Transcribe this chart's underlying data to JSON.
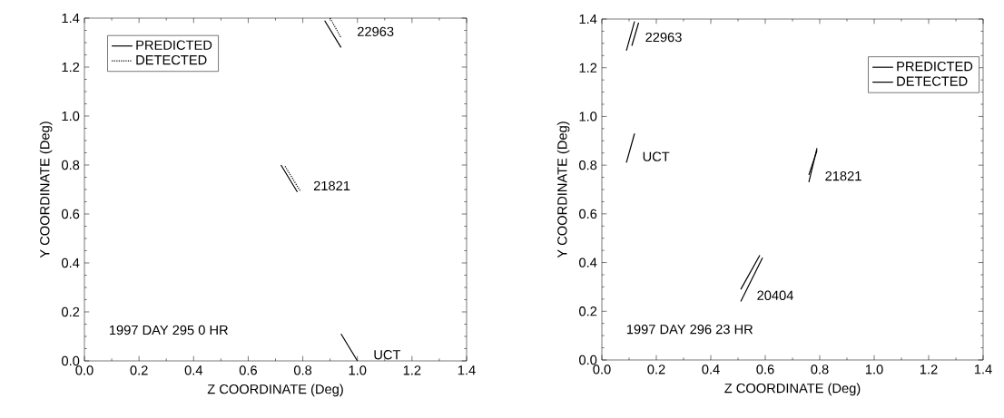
{
  "chart_data": [
    {
      "type": "line",
      "xlabel": "Z COORDINATE (Deg)",
      "ylabel": "Y COORDINATE (Deg)",
      "xlim": [
        0,
        1.4
      ],
      "ylim": [
        0,
        1.4
      ],
      "xticks": [
        {
          "value": 0,
          "label": "0.0"
        },
        {
          "value": 0.2,
          "label": "0.2"
        },
        {
          "value": 0.4,
          "label": "0.4"
        },
        {
          "value": 0.6,
          "label": "0.6"
        },
        {
          "value": 0.8,
          "label": "0.8"
        },
        {
          "value": 1,
          "label": "1.0"
        },
        {
          "value": 1.2,
          "label": "1.2"
        },
        {
          "value": 1.4,
          "label": "1.4"
        }
      ],
      "yticks": [
        {
          "value": 0,
          "label": "0.0"
        },
        {
          "value": 0.2,
          "label": "0.2"
        },
        {
          "value": 0.4,
          "label": "0.4"
        },
        {
          "value": 0.6,
          "label": "0.6"
        },
        {
          "value": 0.8,
          "label": "0.8"
        },
        {
          "value": 1,
          "label": "1.0"
        },
        {
          "value": 1.2,
          "label": "1.2"
        },
        {
          "value": 1.4,
          "label": "1.4"
        }
      ],
      "legend": "top left",
      "series": [
        {
          "name": "PREDICTED",
          "color": "#000000",
          "line_style": "solid",
          "x": [
            0.88,
            0.94,
            null,
            0.72,
            0.78
          ],
          "values": [
            1.39,
            1.28,
            null,
            0.8,
            0.69
          ]
        },
        {
          "name": "DETECTED",
          "color": "#000000",
          "line_style": "dotted",
          "x": [
            0.9,
            0.94,
            null,
            0.735,
            0.79
          ],
          "values": [
            1.4,
            1.32,
            null,
            0.795,
            0.695
          ]
        },
        {
          "color": "#000000",
          "line_style": "solid",
          "x": [
            0.94,
            1.0
          ],
          "values": [
            0.11,
            0.0
          ]
        }
      ],
      "annotations": [
        {
          "text": "22963",
          "x": 0.94,
          "y": 1.32
        },
        {
          "text": "21821",
          "x": 0.78,
          "y": 0.69
        },
        {
          "text": "UCT",
          "x": 1.0,
          "y": 0.0
        },
        "1997 DAY 295 0 HR"
      ]
    },
    {
      "type": "line",
      "xlabel": "Z COORDINATE (Deg)",
      "ylabel": "Y COORDINATE (Deg)",
      "xlim": [
        0,
        1.4
      ],
      "ylim": [
        0,
        1.4
      ],
      "xticks": [
        {
          "value": 0,
          "label": "0.0"
        },
        {
          "value": 0.2,
          "label": "0.2"
        },
        {
          "value": 0.4,
          "label": "0.4"
        },
        {
          "value": 0.6,
          "label": "0.6"
        },
        {
          "value": 0.8,
          "label": "0.8"
        },
        {
          "value": 1,
          "label": "1.0"
        },
        {
          "value": 1.2,
          "label": "1.2"
        },
        {
          "value": 1.4,
          "label": "1.4"
        }
      ],
      "yticks": [
        {
          "value": 0,
          "label": "0.0"
        },
        {
          "value": 0.2,
          "label": "0.2"
        },
        {
          "value": 0.4,
          "label": "0.4"
        },
        {
          "value": 0.6,
          "label": "0.6"
        },
        {
          "value": 0.8,
          "label": "0.8"
        },
        {
          "value": 1,
          "label": "1.0"
        },
        {
          "value": 1.2,
          "label": "1.2"
        },
        {
          "value": 1.4,
          "label": "1.4"
        }
      ],
      "legend": "top right",
      "series": [
        {
          "name": "PREDICTED",
          "color": "#000000",
          "line_style": "solid",
          "x": [
            0.09,
            0.12,
            null,
            0.76,
            0.79,
            null,
            0.51,
            0.59
          ],
          "values": [
            1.27,
            1.39,
            null,
            0.73,
            0.87,
            null,
            0.24,
            0.42
          ]
        },
        {
          "name": "DETECTED",
          "color": "#000000",
          "line_style": "solid",
          "x": [
            0.11,
            0.135,
            null,
            0.76,
            0.79,
            null,
            0.51,
            0.58
          ],
          "values": [
            1.29,
            1.385,
            null,
            0.76,
            0.86,
            null,
            0.29,
            0.43
          ]
        },
        {
          "color": "#000000",
          "line_style": "solid",
          "x": [
            0.09,
            0.12
          ],
          "values": [
            0.81,
            0.93
          ]
        }
      ],
      "annotations": [
        {
          "text": "22963",
          "x": 0.1,
          "y": 1.3
        },
        {
          "text": "UCT",
          "x": 0.09,
          "y": 0.81
        },
        {
          "text": "21821",
          "x": 0.76,
          "y": 0.73
        },
        {
          "text": "20404",
          "x": 0.51,
          "y": 0.24
        },
        "1997 DAY 296 23 HR"
      ]
    }
  ]
}
